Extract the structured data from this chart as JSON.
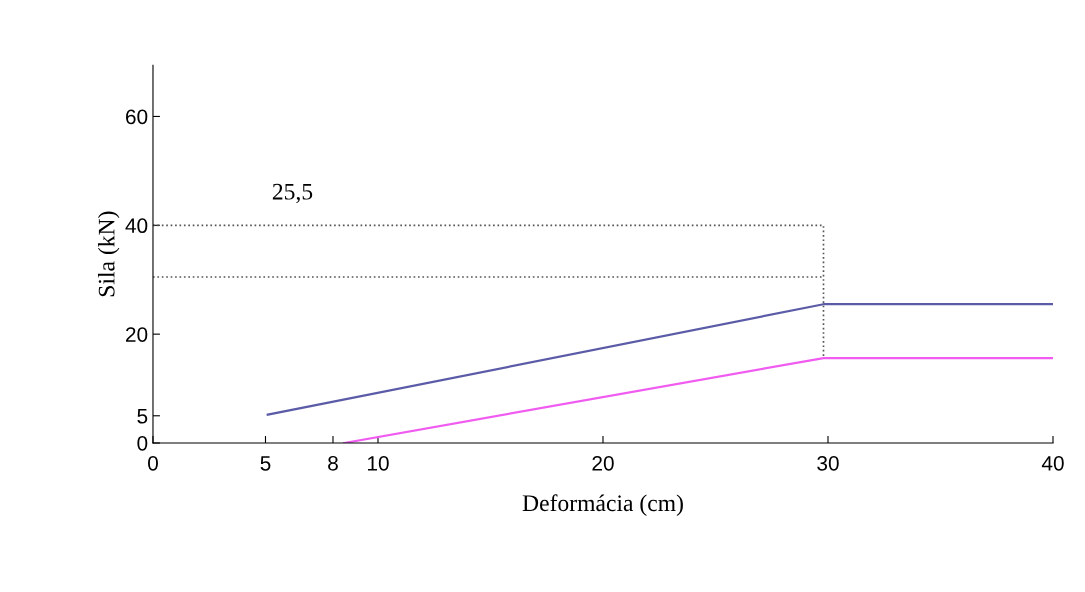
{
  "chart_data": {
    "type": "line",
    "xlabel": "Deformácia (cm)",
    "ylabel": "Sila (kN)",
    "xlim": [
      0,
      40
    ],
    "ylim": [
      0,
      69.4
    ],
    "xticks": [
      0,
      5,
      8,
      10,
      20,
      30,
      40
    ],
    "yticks": [
      0,
      5,
      20,
      40,
      60
    ],
    "grid": false,
    "legend": false,
    "line_style": "solid",
    "marker": "none",
    "annotations": [
      "25,5"
    ],
    "series": [
      {
        "color": "#5b5ba8",
        "x": [
          5.1,
          29.8,
          40
        ],
        "values": [
          5.2,
          25.5,
          25.5
        ]
      },
      {
        "color": "#f05cf0",
        "x": [
          8.5,
          29.8,
          40
        ],
        "values": [
          0,
          15.6,
          15.6
        ]
      },
      {
        "color": "#555555",
        "line_style": "dotted",
        "x": [
          0,
          29.8,
          29.8
        ],
        "values": [
          40,
          40,
          15.6
        ]
      },
      {
        "color": "#555555",
        "line_style": "dotted",
        "x": [
          0,
          29.8
        ],
        "values": [
          30.5,
          30.5
        ]
      }
    ]
  }
}
